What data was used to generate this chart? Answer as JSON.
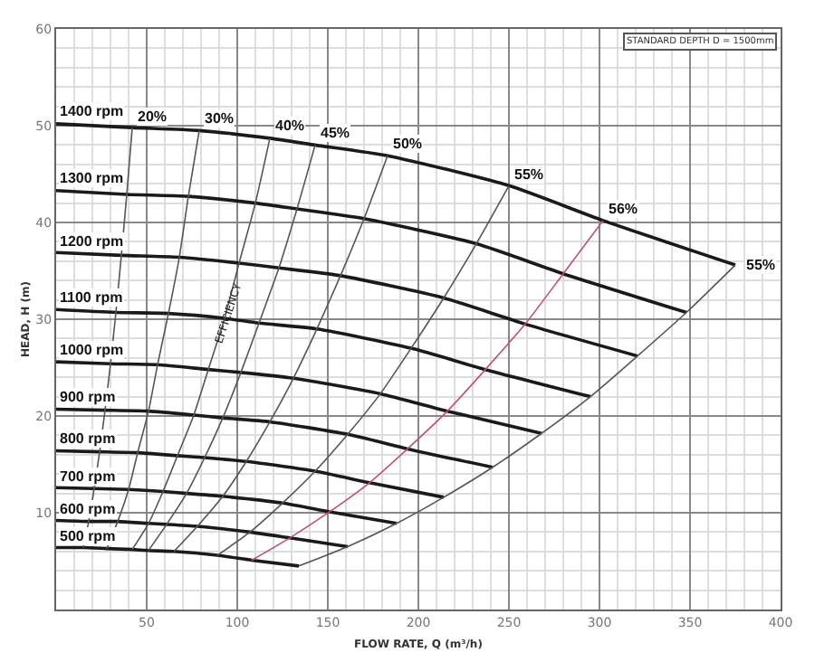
{
  "chart_data": {
    "type": "line",
    "xlabel": "FLOW RATE, Q (m³/h)",
    "ylabel": "HEAD, H (m)",
    "xlim": [
      0,
      400
    ],
    "ylim": [
      0,
      60
    ],
    "xticks": [
      50,
      100,
      150,
      200,
      250,
      300,
      350,
      400
    ],
    "yticks": [
      10,
      20,
      30,
      40,
      50,
      60
    ],
    "grid": true,
    "legend": false,
    "marker": "none",
    "line_style": "solid",
    "annotations": [
      "EFFICIENCY",
      "STANDARD DEPTH D = 1500mm"
    ],
    "series": [
      {
        "name": "1400 rpm",
        "color": "#1a1a1a",
        "x": [
          0,
          42,
          79,
          118,
          143,
          183,
          250,
          302,
          375
        ],
        "values": [
          50.2,
          49.8,
          49.5,
          48.7,
          48.0,
          46.9,
          43.8,
          40.2,
          35.6
        ]
      },
      {
        "name": "1300 rpm",
        "color": "#1a1a1a",
        "x": [
          0,
          39,
          73,
          110,
          133,
          170,
          232,
          280,
          348
        ],
        "values": [
          43.3,
          42.9,
          42.7,
          42.0,
          41.4,
          40.4,
          37.8,
          34.7,
          30.7
        ]
      },
      {
        "name": "1200 rpm",
        "color": "#1a1a1a",
        "x": [
          0,
          36,
          68,
          101,
          123,
          157,
          214,
          259,
          321
        ],
        "values": [
          36.9,
          36.6,
          36.4,
          35.8,
          35.3,
          34.5,
          32.2,
          29.5,
          26.2
        ]
      },
      {
        "name": "1100 rpm",
        "color": "#1a1a1a",
        "x": [
          0,
          33,
          62,
          93,
          112,
          144,
          196,
          237,
          295
        ],
        "values": [
          31.0,
          30.7,
          30.6,
          30.1,
          29.6,
          29.0,
          27.0,
          24.8,
          22.0
        ]
      },
      {
        "name": "1000 rpm",
        "color": "#1a1a1a",
        "x": [
          0,
          30,
          56,
          84,
          102,
          131,
          179,
          216,
          268
        ],
        "values": [
          25.6,
          25.4,
          25.3,
          24.8,
          24.5,
          23.9,
          22.3,
          20.5,
          18.2
        ]
      },
      {
        "name": "900 rpm",
        "color": "#1a1a1a",
        "x": [
          0,
          27,
          51,
          76,
          92,
          118,
          161,
          194,
          241
        ],
        "values": [
          20.7,
          20.6,
          20.5,
          20.1,
          19.8,
          19.4,
          18.1,
          16.6,
          14.7
        ]
      },
      {
        "name": "800 rpm",
        "color": "#1a1a1a",
        "x": [
          0,
          24,
          45,
          67,
          82,
          105,
          143,
          173,
          214
        ],
        "values": [
          16.4,
          16.3,
          16.2,
          15.9,
          15.7,
          15.3,
          14.3,
          13.1,
          11.6
        ]
      },
      {
        "name": "700 rpm",
        "color": "#1a1a1a",
        "x": [
          0,
          21,
          40,
          59,
          72,
          92,
          125,
          151,
          188
        ],
        "values": [
          12.6,
          12.5,
          12.4,
          12.2,
          12.0,
          11.7,
          11.0,
          10.1,
          8.9
        ]
      },
      {
        "name": "600 rpm",
        "color": "#1a1a1a",
        "x": [
          0,
          18,
          34,
          51,
          61,
          78,
          107,
          129,
          161
        ],
        "values": [
          9.2,
          9.1,
          9.1,
          8.9,
          8.8,
          8.6,
          8.0,
          7.4,
          6.5
        ]
      },
      {
        "name": "500 rpm",
        "color": "#1a1a1a",
        "x": [
          0,
          15,
          28,
          42,
          51,
          65,
          89,
          108,
          134
        ],
        "values": [
          6.4,
          6.4,
          6.3,
          6.2,
          6.1,
          6.0,
          5.6,
          5.1,
          4.5
        ]
      },
      {
        "name": "20%",
        "color": "#555555",
        "x": [
          15,
          18,
          21,
          24,
          27,
          30,
          33,
          36,
          39,
          42
        ],
        "values": [
          6.4,
          9.1,
          12.5,
          16.3,
          20.6,
          25.4,
          30.7,
          36.6,
          42.9,
          49.8
        ]
      },
      {
        "name": "30%",
        "color": "#555555",
        "x": [
          28,
          34,
          40,
          45,
          51,
          56,
          62,
          68,
          73,
          79
        ],
        "values": [
          6.3,
          9.1,
          12.4,
          16.2,
          20.5,
          25.3,
          30.6,
          36.4,
          42.7,
          49.5
        ]
      },
      {
        "name": "40%",
        "color": "#555555",
        "x": [
          42,
          51,
          59,
          67,
          76,
          84,
          93,
          101,
          110,
          118
        ],
        "values": [
          6.2,
          8.9,
          12.2,
          15.9,
          20.1,
          24.8,
          30.1,
          35.8,
          42.0,
          48.7
        ]
      },
      {
        "name": "45%",
        "color": "#555555",
        "x": [
          51,
          61,
          72,
          82,
          92,
          102,
          112,
          123,
          133,
          143
        ],
        "values": [
          6.1,
          8.8,
          12.0,
          15.7,
          19.8,
          24.5,
          29.6,
          35.3,
          41.4,
          48.0
        ]
      },
      {
        "name": "50%",
        "color": "#555555",
        "x": [
          65,
          78,
          92,
          105,
          118,
          131,
          144,
          157,
          170,
          183
        ],
        "values": [
          6.0,
          8.6,
          11.7,
          15.3,
          19.4,
          23.9,
          29.0,
          34.5,
          40.4,
          46.9
        ]
      },
      {
        "name": "55%",
        "color": "#555555",
        "x": [
          89,
          107,
          125,
          143,
          161,
          179,
          196,
          214,
          232,
          250
        ],
        "values": [
          5.6,
          8.0,
          11.0,
          14.3,
          18.1,
          22.3,
          27.0,
          32.2,
          37.8,
          43.8
        ]
      },
      {
        "name": "56%",
        "color": "#c0506a",
        "x": [
          108,
          129,
          151,
          173,
          194,
          216,
          237,
          259,
          280,
          302
        ],
        "values": [
          5.1,
          7.4,
          10.1,
          13.1,
          16.6,
          20.5,
          24.8,
          29.5,
          34.7,
          40.2
        ]
      },
      {
        "name": "55%",
        "color": "#555555",
        "x": [
          134,
          161,
          188,
          214,
          241,
          268,
          295,
          321,
          348,
          375
        ],
        "values": [
          4.5,
          6.5,
          8.9,
          11.6,
          14.7,
          18.2,
          22.0,
          26.2,
          30.7,
          35.6
        ]
      }
    ]
  }
}
